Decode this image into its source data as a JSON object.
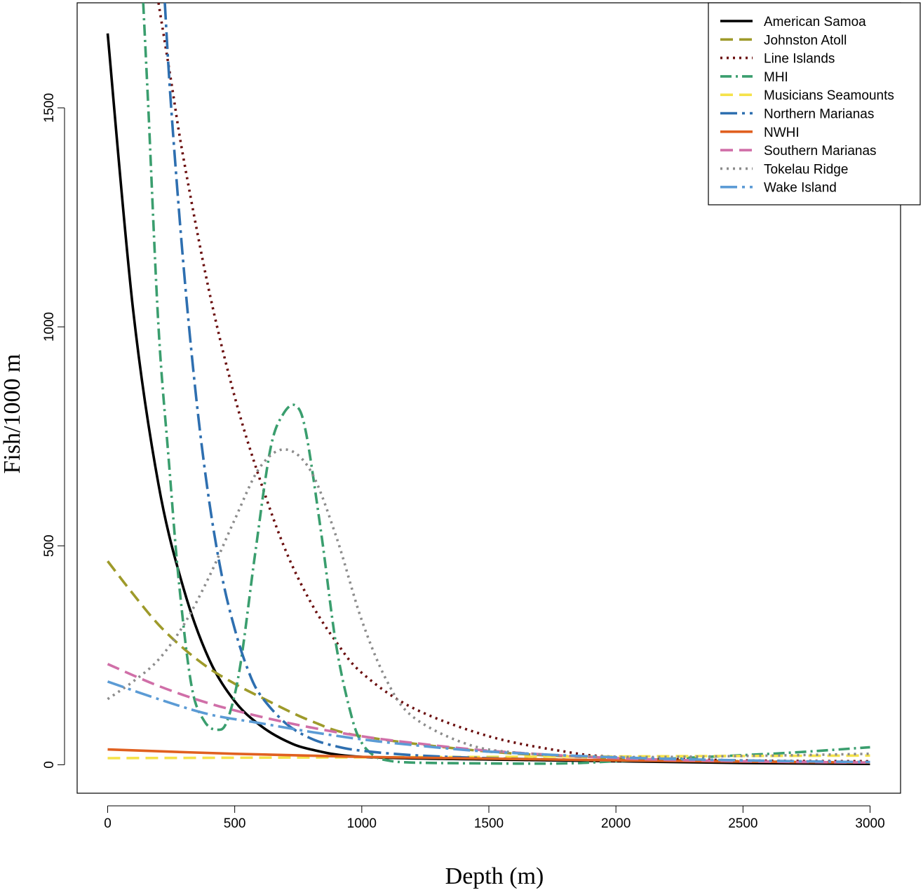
{
  "chart_data": {
    "type": "line",
    "title": "",
    "xlabel": "Depth (m)",
    "ylabel": "Fish/1000 m",
    "xlim": [
      -120,
      3120
    ],
    "ylim": [
      -65,
      1740
    ],
    "xticks": [
      0,
      500,
      1000,
      1500,
      2000,
      2500,
      3000
    ],
    "yticks": [
      0,
      500,
      1000,
      1500
    ],
    "xtick_labels": [
      "0",
      "500",
      "1000",
      "1500",
      "2000",
      "2500",
      "3000"
    ],
    "ytick_labels": [
      "0",
      "500",
      "1000",
      "1500"
    ],
    "legend_position": "top-right",
    "series": [
      {
        "name": "American Samoa",
        "color": "#000000",
        "dash": "solid",
        "x": [
          0,
          100,
          200,
          300,
          400,
          500,
          600,
          700,
          800,
          1000,
          1500,
          2000,
          2500,
          3000
        ],
        "y": [
          1670,
          1040,
          640,
          400,
          240,
          145,
          90,
          55,
          35,
          18,
          12,
          8,
          4,
          2
        ]
      },
      {
        "name": "Johnston Atoll",
        "color": "#9e9a2a",
        "dash": "long",
        "x": [
          0,
          100,
          200,
          300,
          400,
          500,
          600,
          800,
          1000,
          1500,
          2000,
          2500,
          3000
        ],
        "y": [
          465,
          390,
          320,
          265,
          220,
          185,
          155,
          100,
          65,
          30,
          15,
          8,
          5
        ]
      },
      {
        "name": "Line Islands",
        "color": "#6b0f0f",
        "dash": "dot",
        "x": [
          200,
          250,
          300,
          400,
          500,
          600,
          700,
          800,
          900,
          1000,
          1200,
          1500,
          1800,
          2000,
          2500,
          3000
        ],
        "y": [
          1740,
          1560,
          1380,
          1080,
          840,
          650,
          490,
          370,
          280,
          210,
          130,
          65,
          30,
          18,
          10,
          8
        ]
      },
      {
        "name": "MHI",
        "color": "#3a9e6e",
        "dash": "dashdot",
        "x": [
          140,
          160,
          200,
          240,
          280,
          330,
          380,
          430,
          470,
          520,
          580,
          640,
          690,
          740,
          780,
          840,
          900,
          960,
          1000,
          1050,
          1100,
          1200,
          1500,
          1800,
          2000,
          2500,
          2700,
          3000
        ],
        "y": [
          1740,
          1500,
          1000,
          700,
          420,
          180,
          100,
          80,
          100,
          220,
          480,
          720,
          800,
          820,
          760,
          530,
          270,
          110,
          50,
          20,
          10,
          5,
          3,
          3,
          8,
          22,
          28,
          40
        ]
      },
      {
        "name": "Musicians Seamounts",
        "color": "#f5e24a",
        "dash": "long",
        "x": [
          0,
          500,
          1000,
          1500,
          2000,
          2500,
          3000
        ],
        "y": [
          15,
          16,
          17,
          18,
          19,
          20,
          21
        ]
      },
      {
        "name": "Northern Marianas",
        "color": "#2e6fb0",
        "dash": "longdot",
        "x": [
          225,
          250,
          300,
          350,
          400,
          450,
          500,
          550,
          600,
          700,
          800,
          900,
          1000,
          1200,
          1500,
          2000,
          2500,
          3000
        ],
        "y": [
          1740,
          1500,
          1130,
          830,
          600,
          430,
          310,
          220,
          160,
          95,
          60,
          42,
          32,
          22,
          15,
          10,
          8,
          6
        ]
      },
      {
        "name": "NWHI",
        "color": "#e06020",
        "dash": "solid",
        "x": [
          0,
          500,
          1000,
          1500,
          2000,
          2500,
          3000
        ],
        "y": [
          35,
          25,
          18,
          14,
          10,
          7,
          5
        ]
      },
      {
        "name": "Southern Marianas",
        "color": "#d06fa8",
        "dash": "long",
        "x": [
          0,
          200,
          400,
          600,
          800,
          1000,
          1200,
          1500,
          2000,
          2500,
          3000
        ],
        "y": [
          230,
          180,
          140,
          110,
          85,
          65,
          50,
          32,
          15,
          8,
          5
        ]
      },
      {
        "name": "Tokelau Ridge",
        "color": "#8c8c8c",
        "dash": "dot",
        "x": [
          0,
          100,
          200,
          300,
          400,
          500,
          600,
          700,
          800,
          900,
          1000,
          1100,
          1200,
          1400,
          1600,
          2000,
          2500,
          3000
        ],
        "y": [
          150,
          190,
          240,
          320,
          430,
          560,
          680,
          720,
          670,
          520,
          330,
          190,
          110,
          50,
          28,
          18,
          20,
          25
        ]
      },
      {
        "name": "Wake Island",
        "color": "#5b9bd5",
        "dash": "longdot",
        "x": [
          0,
          200,
          400,
          600,
          800,
          1000,
          1200,
          1500,
          2000,
          2500,
          3000
        ],
        "y": [
          190,
          150,
          115,
          95,
          75,
          58,
          45,
          30,
          17,
          10,
          6
        ]
      }
    ]
  }
}
